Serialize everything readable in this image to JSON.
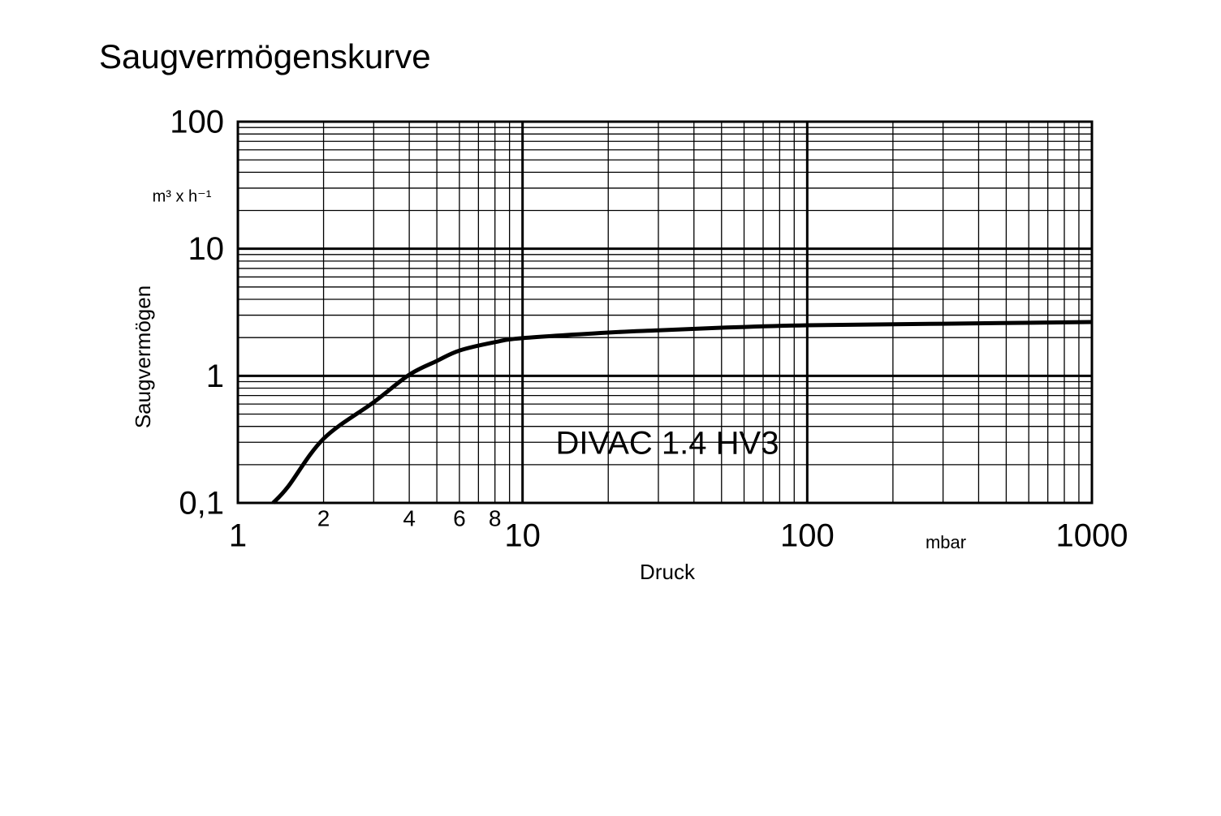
{
  "chart_data": {
    "type": "line",
    "title": "Saugvermögenskurve",
    "x_label": "Druck",
    "y_label": "Saugvermögen",
    "x_unit": "mbar",
    "y_unit": "m³ x h⁻¹",
    "annotation": "DIVAC  1.4 HV3",
    "log_x": true,
    "log_y": true,
    "grid": true,
    "xlim": [
      1,
      1000
    ],
    "ylim": [
      0.1,
      100
    ],
    "xticks": [
      1,
      10,
      100,
      1000
    ],
    "yticks": [
      {
        "value": 0.1,
        "label": "0,1"
      },
      1,
      10,
      100
    ],
    "xminorticks": [
      2,
      4,
      6,
      8
    ],
    "xgrid_minor": [
      2,
      3,
      4,
      5,
      6,
      7,
      8,
      9,
      20,
      30,
      40,
      50,
      60,
      70,
      80,
      90,
      200,
      300,
      400,
      500,
      600,
      700,
      800,
      900
    ],
    "ygrid_minor": [
      0.2,
      0.3,
      0.4,
      0.5,
      0.6,
      0.7,
      0.8,
      0.9,
      2,
      3,
      4,
      5,
      6,
      7,
      8,
      9,
      20,
      30,
      40,
      50,
      60,
      70,
      80,
      90
    ],
    "x": [
      1.33,
      1.5,
      2,
      3,
      4,
      5,
      6,
      8,
      10,
      20,
      30,
      50,
      100,
      300,
      1000
    ],
    "series": [
      {
        "color": "#000000",
        "values": [
          0.1,
          0.134,
          0.32,
          0.62,
          1.02,
          1.31,
          1.58,
          1.84,
          1.98,
          2.19,
          2.28,
          2.39,
          2.5,
          2.57,
          2.65
        ]
      }
    ]
  }
}
